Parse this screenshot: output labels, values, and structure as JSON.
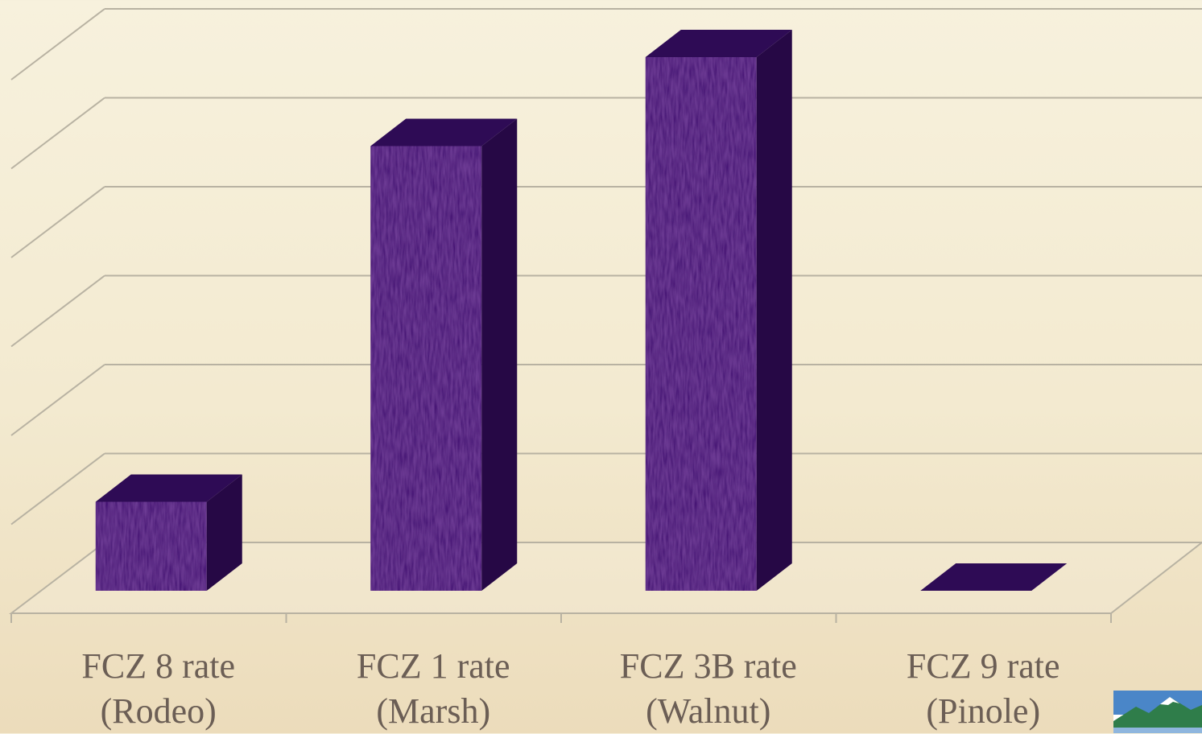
{
  "chart_data": {
    "type": "bar",
    "title": "",
    "xlabel": "",
    "ylabel": "",
    "categories": [
      "FCZ 8 rate\n(Rodeo)",
      "FCZ 1 rate\n(Marsh)",
      "FCZ 3B rate\n(Walnut)",
      "FCZ 9 rate\n(Pinole)"
    ],
    "values": [
      1.0,
      5.0,
      6.0,
      0.0
    ],
    "ylim": [
      0,
      7
    ],
    "grid": true,
    "legend": "none",
    "style": "3d-column"
  },
  "colors": {
    "bar_front": "#3d0f6e",
    "bar_side": "#260845",
    "bar_top": "#2e0b55",
    "grid": "#b8b2a2",
    "label": "#6b5e55"
  },
  "icons": {
    "logo": "mountain-logo-icon"
  }
}
